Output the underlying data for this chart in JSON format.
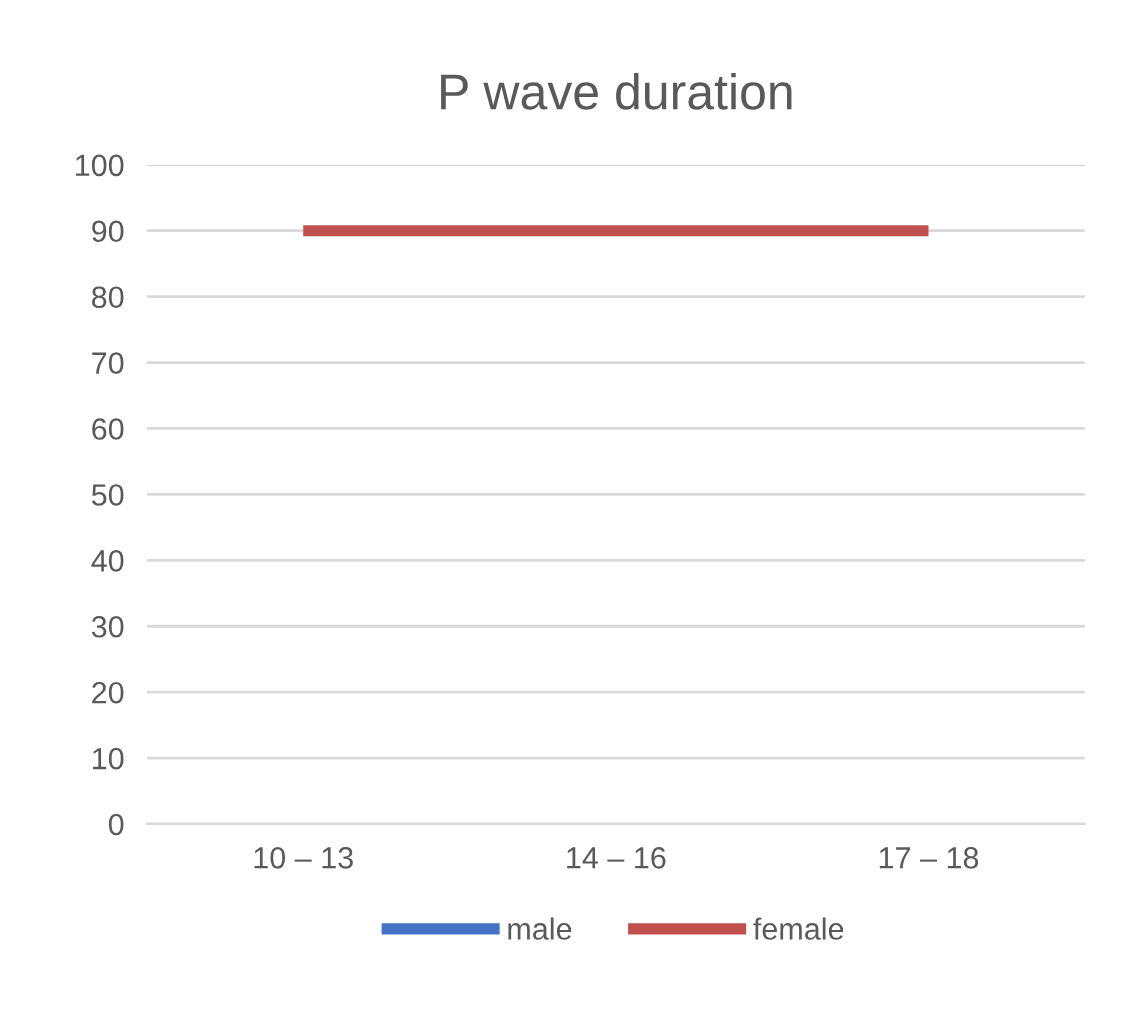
{
  "chart_data": {
    "type": "line",
    "title": "P wave duration",
    "categories": [
      "10 – 13",
      "14 – 16",
      "17 – 18"
    ],
    "series": [
      {
        "name": "male",
        "color": "#4472c4",
        "values": [
          null,
          null,
          null
        ]
      },
      {
        "name": "female",
        "color": "#c0504d",
        "values": [
          90,
          90,
          90
        ]
      }
    ],
    "ylim": [
      0,
      100
    ],
    "yticks": [
      0,
      10,
      20,
      30,
      40,
      50,
      60,
      70,
      80,
      90,
      100
    ],
    "grid": "y",
    "legend": "bottom",
    "marker": "none",
    "line_style": "solid"
  }
}
